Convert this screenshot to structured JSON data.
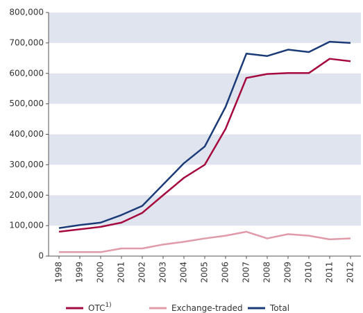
{
  "chart_data": {
    "type": "line",
    "categories": [
      "1998",
      "1999",
      "2000",
      "2001",
      "2002",
      "2003",
      "2004",
      "2005",
      "2006",
      "2007",
      "2008",
      "2009",
      "2010",
      "2011",
      "2012"
    ],
    "series": [
      {
        "name": "OTC",
        "note": "1)",
        "color": "#a6093d",
        "values": [
          80000,
          88000,
          96000,
          110000,
          142000,
          200000,
          257000,
          300000,
          418000,
          585000,
          598000,
          601000,
          601000,
          648000,
          640000
        ]
      },
      {
        "name": "Exchange-traded",
        "color": "#e09aa8",
        "values": [
          13000,
          13000,
          13000,
          25000,
          25000,
          38000,
          47000,
          58000,
          67000,
          80000,
          58000,
          72000,
          67000,
          55000,
          58000
        ]
      },
      {
        "name": "Total",
        "color": "#1a3a78",
        "values": [
          92000,
          102000,
          110000,
          135000,
          165000,
          235000,
          305000,
          360000,
          490000,
          665000,
          657000,
          678000,
          670000,
          704000,
          700000
        ]
      }
    ],
    "ylim": [
      0,
      800000
    ],
    "yticks": [
      {
        "value": 0,
        "label": "0"
      },
      {
        "value": 100000,
        "label": "100,000"
      },
      {
        "value": 200000,
        "label": "200,000"
      },
      {
        "value": 300000,
        "label": "300,000"
      },
      {
        "value": 400000,
        "label": "400,000"
      },
      {
        "value": 500000,
        "label": "500,000"
      },
      {
        "value": 600000,
        "label": "600,000"
      },
      {
        "value": 700000,
        "label": "700,000"
      },
      {
        "value": 800000,
        "label": "800,000"
      }
    ],
    "bands": true,
    "band_color": "#dfe4ee",
    "legend": "bottom"
  }
}
